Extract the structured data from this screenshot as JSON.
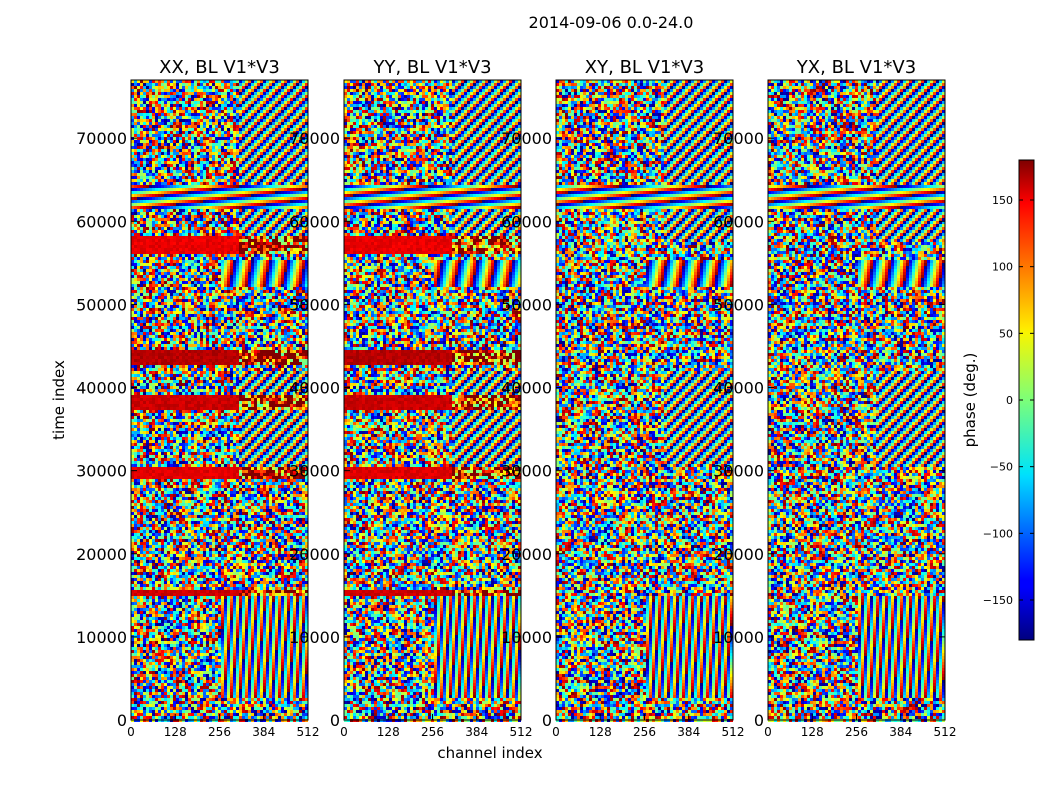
{
  "figure": {
    "suptitle": "2014-09-06 0.0-24.0",
    "xlabel": "channel index",
    "ylabel": "time index",
    "colorbar_label": "phase (deg.)"
  },
  "chart_data": {
    "type": "heatmap",
    "title": "2014-09-06 0.0-24.0",
    "xlabel": "channel index",
    "ylabel": "time index",
    "xlim": [
      0,
      512
    ],
    "ylim": [
      0,
      77000
    ],
    "x_ticks": [
      0,
      128,
      256,
      384,
      512
    ],
    "y_ticks": [
      0,
      10000,
      20000,
      30000,
      40000,
      50000,
      60000,
      70000
    ],
    "panels": [
      {
        "title": "XX, BL V1*V3",
        "pol": "XX"
      },
      {
        "title": "YY, BL V1*V3",
        "pol": "YY"
      },
      {
        "title": "XY, BL V1*V3",
        "pol": "XY"
      },
      {
        "title": "YX, BL V1*V3",
        "pol": "YX"
      }
    ],
    "colorbar": {
      "label": "phase (deg.)",
      "range": [
        -180,
        180
      ],
      "ticks": [
        -150,
        -100,
        -50,
        0,
        50,
        100,
        150
      ],
      "colormap": "jet"
    }
  }
}
